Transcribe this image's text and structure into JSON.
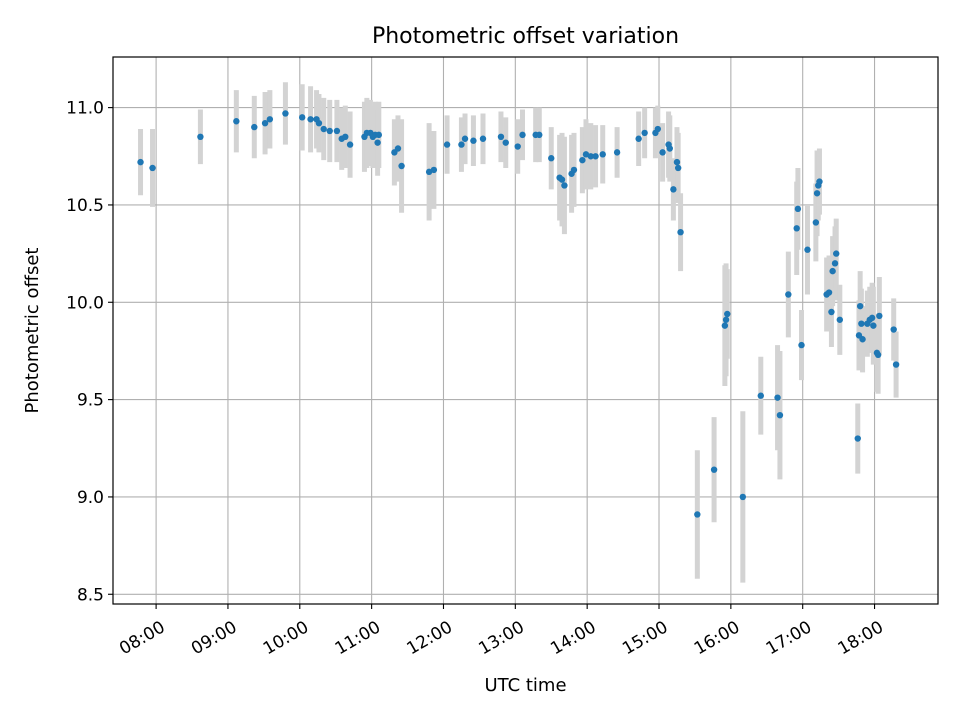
{
  "chart_data": {
    "type": "scatter",
    "title": "Photometric offset variation",
    "xlabel": "UTC time",
    "ylabel": "Photometric offset",
    "xlim": [
      "07:24",
      "18:53"
    ],
    "ylim": [
      8.45,
      11.26
    ],
    "x_ticks": [
      "08:00",
      "09:00",
      "10:00",
      "11:00",
      "12:00",
      "13:00",
      "14:00",
      "15:00",
      "16:00",
      "17:00",
      "18:00"
    ],
    "y_ticks": [
      "8.5",
      "9.0",
      "9.5",
      "10.0",
      "10.5",
      "11.0"
    ],
    "grid": true,
    "colors": {
      "points": "#1f77b4",
      "errorbars": "#d3d3d3",
      "grid": "#b0b0b0"
    },
    "points": [
      {
        "x": "07:47",
        "y": 10.72,
        "err": 0.17
      },
      {
        "x": "07:57",
        "y": 10.69,
        "err": 0.2
      },
      {
        "x": "08:37",
        "y": 10.85,
        "err": 0.14
      },
      {
        "x": "09:07",
        "y": 10.93,
        "err": 0.16
      },
      {
        "x": "09:22",
        "y": 10.9,
        "err": 0.16
      },
      {
        "x": "09:31",
        "y": 10.92,
        "err": 0.16
      },
      {
        "x": "09:35",
        "y": 10.94,
        "err": 0.15
      },
      {
        "x": "09:48",
        "y": 10.97,
        "err": 0.16
      },
      {
        "x": "10:02",
        "y": 10.95,
        "err": 0.17
      },
      {
        "x": "10:09",
        "y": 10.94,
        "err": 0.17
      },
      {
        "x": "10:14",
        "y": 10.94,
        "err": 0.15
      },
      {
        "x": "10:16",
        "y": 10.92,
        "err": 0.15
      },
      {
        "x": "10:20",
        "y": 10.89,
        "err": 0.16
      },
      {
        "x": "10:25",
        "y": 10.88,
        "err": 0.16
      },
      {
        "x": "10:31",
        "y": 10.88,
        "err": 0.16
      },
      {
        "x": "10:35",
        "y": 10.84,
        "err": 0.16
      },
      {
        "x": "10:38",
        "y": 10.85,
        "err": 0.16
      },
      {
        "x": "10:42",
        "y": 10.81,
        "err": 0.17
      },
      {
        "x": "10:54",
        "y": 10.85,
        "err": 0.18
      },
      {
        "x": "10:56",
        "y": 10.87,
        "err": 0.18
      },
      {
        "x": "10:59",
        "y": 10.87,
        "err": 0.17
      },
      {
        "x": "11:01",
        "y": 10.85,
        "err": 0.16
      },
      {
        "x": "11:03",
        "y": 10.86,
        "err": 0.17
      },
      {
        "x": "11:05",
        "y": 10.82,
        "err": 0.17
      },
      {
        "x": "11:06",
        "y": 10.86,
        "err": 0.17
      },
      {
        "x": "11:19",
        "y": 10.77,
        "err": 0.17
      },
      {
        "x": "11:22",
        "y": 10.79,
        "err": 0.17
      },
      {
        "x": "11:25",
        "y": 10.7,
        "err": 0.24
      },
      {
        "x": "11:48",
        "y": 10.67,
        "err": 0.25
      },
      {
        "x": "11:52",
        "y": 10.68,
        "err": 0.2
      },
      {
        "x": "12:03",
        "y": 10.81,
        "err": 0.15
      },
      {
        "x": "12:15",
        "y": 10.81,
        "err": 0.14
      },
      {
        "x": "12:18",
        "y": 10.84,
        "err": 0.13
      },
      {
        "x": "12:25",
        "y": 10.83,
        "err": 0.13
      },
      {
        "x": "12:33",
        "y": 10.84,
        "err": 0.13
      },
      {
        "x": "12:48",
        "y": 10.85,
        "err": 0.13
      },
      {
        "x": "12:52",
        "y": 10.82,
        "err": 0.13
      },
      {
        "x": "13:02",
        "y": 10.8,
        "err": 0.14
      },
      {
        "x": "13:06",
        "y": 10.86,
        "err": 0.13
      },
      {
        "x": "13:17",
        "y": 10.86,
        "err": 0.14
      },
      {
        "x": "13:20",
        "y": 10.86,
        "err": 0.14
      },
      {
        "x": "13:30",
        "y": 10.74,
        "err": 0.16
      },
      {
        "x": "13:37",
        "y": 10.64,
        "err": 0.22
      },
      {
        "x": "13:39",
        "y": 10.63,
        "err": 0.24
      },
      {
        "x": "13:41",
        "y": 10.6,
        "err": 0.25
      },
      {
        "x": "13:47",
        "y": 10.66,
        "err": 0.2
      },
      {
        "x": "13:49",
        "y": 10.68,
        "err": 0.19
      },
      {
        "x": "13:56",
        "y": 10.73,
        "err": 0.17
      },
      {
        "x": "13:59",
        "y": 10.76,
        "err": 0.18
      },
      {
        "x": "14:03",
        "y": 10.75,
        "err": 0.17
      },
      {
        "x": "14:07",
        "y": 10.75,
        "err": 0.16
      },
      {
        "x": "14:13",
        "y": 10.76,
        "err": 0.15
      },
      {
        "x": "14:25",
        "y": 10.77,
        "err": 0.13
      },
      {
        "x": "14:43",
        "y": 10.84,
        "err": 0.14
      },
      {
        "x": "14:48",
        "y": 10.87,
        "err": 0.13
      },
      {
        "x": "14:57",
        "y": 10.87,
        "err": 0.13
      },
      {
        "x": "14:59",
        "y": 10.89,
        "err": 0.12
      },
      {
        "x": "15:03",
        "y": 10.77,
        "err": 0.15
      },
      {
        "x": "15:08",
        "y": 10.81,
        "err": 0.17
      },
      {
        "x": "15:09",
        "y": 10.79,
        "err": 0.17
      },
      {
        "x": "15:12",
        "y": 10.58,
        "err": 0.16
      },
      {
        "x": "15:15",
        "y": 10.72,
        "err": 0.18
      },
      {
        "x": "15:16",
        "y": 10.69,
        "err": 0.18
      },
      {
        "x": "15:18",
        "y": 10.36,
        "err": 0.2
      },
      {
        "x": "15:32",
        "y": 8.91,
        "err": 0.33
      },
      {
        "x": "15:46",
        "y": 9.14,
        "err": 0.27
      },
      {
        "x": "15:55",
        "y": 9.88,
        "err": 0.31
      },
      {
        "x": "15:56",
        "y": 9.91,
        "err": 0.29
      },
      {
        "x": "15:57",
        "y": 9.94,
        "err": 0.23
      },
      {
        "x": "16:10",
        "y": 9.0,
        "err": 0.44
      },
      {
        "x": "16:25",
        "y": 9.52,
        "err": 0.2
      },
      {
        "x": "16:39",
        "y": 9.51,
        "err": 0.27
      },
      {
        "x": "16:41",
        "y": 9.42,
        "err": 0.33
      },
      {
        "x": "16:48",
        "y": 10.04,
        "err": 0.22
      },
      {
        "x": "16:55",
        "y": 10.38,
        "err": 0.24
      },
      {
        "x": "16:56",
        "y": 10.48,
        "err": 0.21
      },
      {
        "x": "16:59",
        "y": 9.78,
        "err": 0.18
      },
      {
        "x": "17:04",
        "y": 10.27,
        "err": 0.23
      },
      {
        "x": "17:11",
        "y": 10.41,
        "err": 0.2
      },
      {
        "x": "17:12",
        "y": 10.56,
        "err": 0.22
      },
      {
        "x": "17:13",
        "y": 10.6,
        "err": 0.18
      },
      {
        "x": "17:14",
        "y": 10.62,
        "err": 0.17
      },
      {
        "x": "17:20",
        "y": 10.04,
        "err": 0.19
      },
      {
        "x": "17:22",
        "y": 10.05,
        "err": 0.19
      },
      {
        "x": "17:24",
        "y": 9.95,
        "err": 0.18
      },
      {
        "x": "17:25",
        "y": 10.16,
        "err": 0.18
      },
      {
        "x": "17:27",
        "y": 10.2,
        "err": 0.19
      },
      {
        "x": "17:28",
        "y": 10.25,
        "err": 0.18
      },
      {
        "x": "17:31",
        "y": 9.91,
        "err": 0.18
      },
      {
        "x": "17:46",
        "y": 9.3,
        "err": 0.18
      },
      {
        "x": "17:47",
        "y": 9.83,
        "err": 0.18
      },
      {
        "x": "17:48",
        "y": 9.98,
        "err": 0.18
      },
      {
        "x": "17:49",
        "y": 9.89,
        "err": 0.18
      },
      {
        "x": "17:50",
        "y": 9.81,
        "err": 0.17
      },
      {
        "x": "17:54",
        "y": 9.89,
        "err": 0.17
      },
      {
        "x": "17:56",
        "y": 9.91,
        "err": 0.17
      },
      {
        "x": "17:58",
        "y": 9.92,
        "err": 0.18
      },
      {
        "x": "17:59",
        "y": 9.88,
        "err": 0.2
      },
      {
        "x": "18:02",
        "y": 9.74,
        "err": 0.2
      },
      {
        "x": "18:03",
        "y": 9.73,
        "err": 0.2
      },
      {
        "x": "18:04",
        "y": 9.93,
        "err": 0.2
      },
      {
        "x": "18:16",
        "y": 9.86,
        "err": 0.16
      },
      {
        "x": "18:18",
        "y": 9.68,
        "err": 0.17
      }
    ]
  }
}
